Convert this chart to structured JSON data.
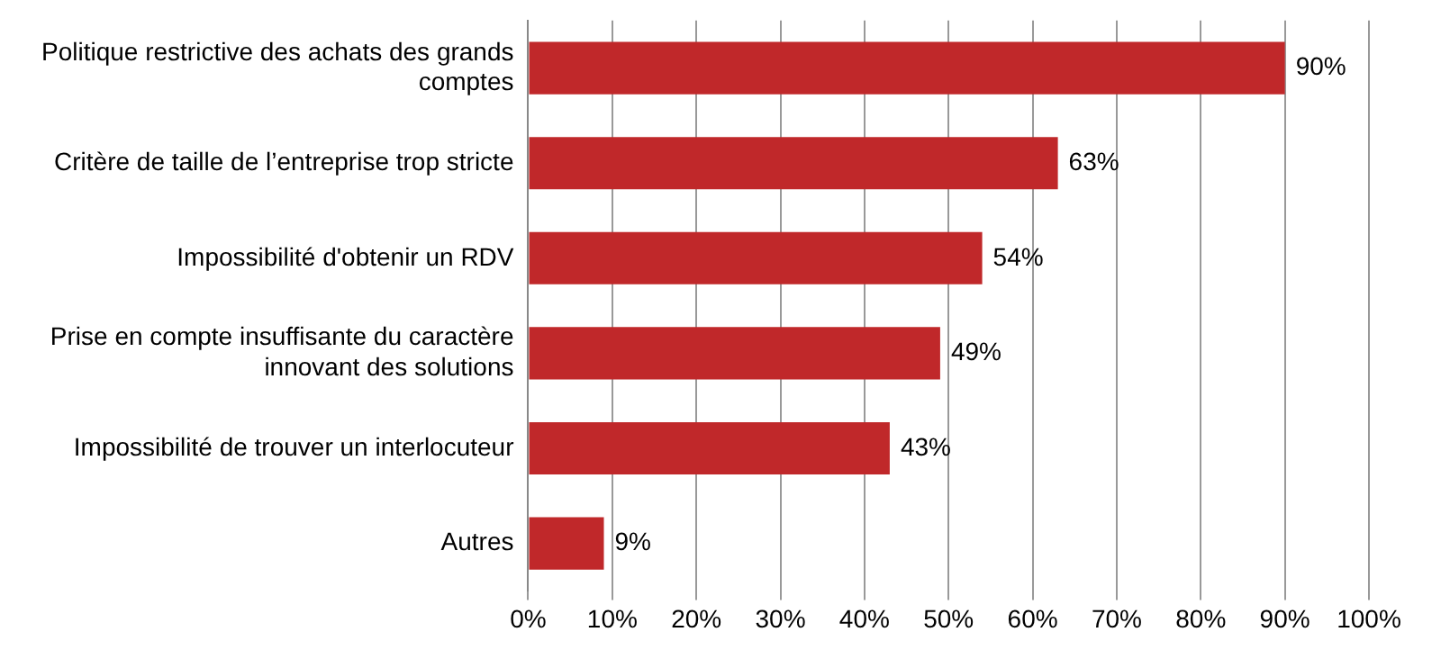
{
  "chart_data": {
    "type": "bar",
    "orientation": "horizontal",
    "categories": [
      "Politique restrictive des achats des grands comptes",
      "Critère de taille de l’entreprise trop stricte",
      "Impossibilité d'obtenir un RDV",
      "Prise en compte insuffisante du caractère innovant des solutions",
      "Impossibilité de trouver un interlocuteur",
      "Autres"
    ],
    "values": [
      90,
      63,
      54,
      49,
      43,
      9
    ],
    "value_labels": [
      "90%",
      "63%",
      "54%",
      "49%",
      "43%",
      "9%"
    ],
    "color": "#c0282a",
    "xlim": [
      0,
      100
    ],
    "xticks": [
      {
        "value": 0,
        "label": "0%"
      },
      {
        "value": 10,
        "label": "10%"
      },
      {
        "value": 20,
        "label": "20%"
      },
      {
        "value": 30,
        "label": "30%"
      },
      {
        "value": 40,
        "label": "40%"
      },
      {
        "value": 50,
        "label": "50%"
      },
      {
        "value": 60,
        "label": "60%"
      },
      {
        "value": 70,
        "label": "70%"
      },
      {
        "value": 80,
        "label": "80%"
      },
      {
        "value": 90,
        "label": "90%"
      },
      {
        "value": 100,
        "label": "100%"
      }
    ],
    "grid": "x",
    "legend": false
  }
}
